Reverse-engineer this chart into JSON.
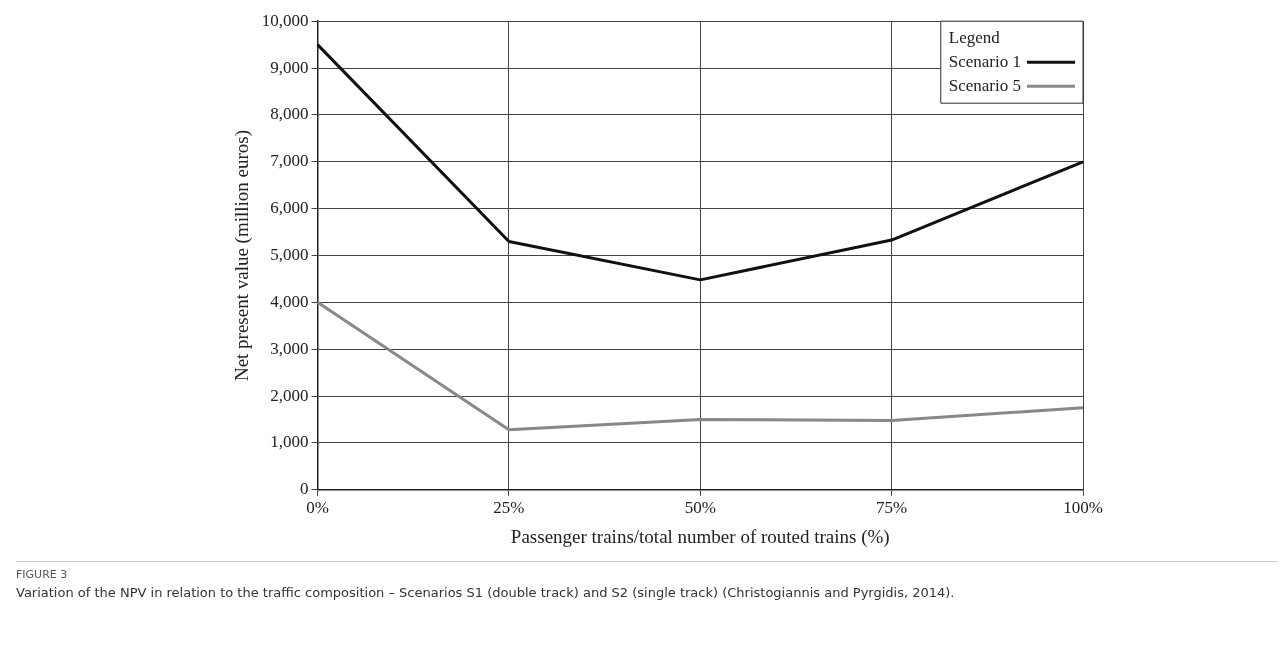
{
  "chart_data": {
    "type": "line",
    "xlabel": "Passenger trains/total number of routed trains (%)",
    "ylabel": "Net present value (million euros)",
    "legend_title": "Legend",
    "categories": [
      "0%",
      "25%",
      "50%",
      "75%",
      "100%"
    ],
    "series": [
      {
        "name": "Scenario 1",
        "color": "#111111",
        "values": [
          9500,
          5300,
          4480,
          5330,
          7000
        ]
      },
      {
        "name": "Scenario 5",
        "color": "#888888",
        "values": [
          4000,
          1280,
          1500,
          1480,
          1750
        ]
      }
    ],
    "ylim": [
      0,
      10000
    ],
    "yticks": [
      {
        "value": 0,
        "label": "0"
      },
      {
        "value": 1000,
        "label": "1,000"
      },
      {
        "value": 2000,
        "label": "2,000"
      },
      {
        "value": 3000,
        "label": "3,000"
      },
      {
        "value": 4000,
        "label": "4,000"
      },
      {
        "value": 5000,
        "label": "5,000"
      },
      {
        "value": 6000,
        "label": "6,000"
      },
      {
        "value": 7000,
        "label": "7,000"
      },
      {
        "value": 8000,
        "label": "8,000"
      },
      {
        "value": 9000,
        "label": "9,000"
      },
      {
        "value": 10000,
        "label": "10,000"
      }
    ],
    "grid": true,
    "legend": "top right",
    "marker": "none",
    "line_style": "solid",
    "annotations": [
      "FIGURE 3",
      "Variation of the NPV in relation to the traffic composition – Scenarios S1 (double track) and S2 (single track) (Christogiannis and Pyrgidis, 2014)."
    ]
  }
}
